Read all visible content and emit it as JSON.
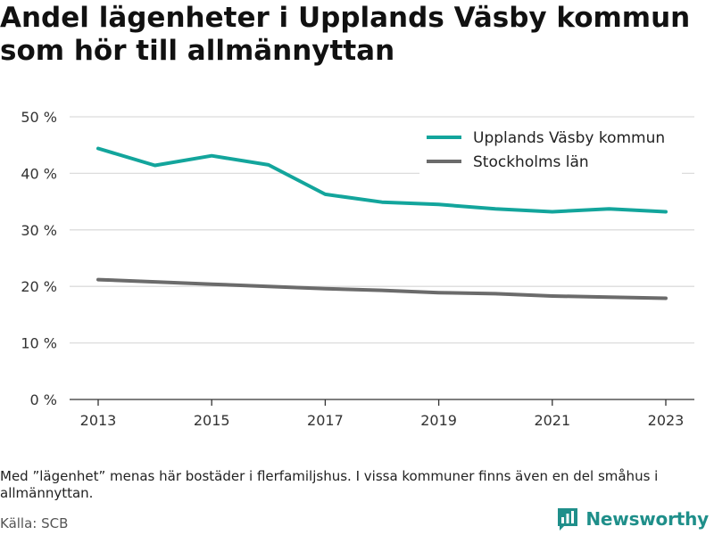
{
  "title": "Andel lägenheter i Upplands Väsby kommun som hör till allmännyttan",
  "note": "Med ”lägenhet” menas här bostäder i flerfamiljshus. I vissa kommuner finns även en del småhus i allmännyttan.",
  "source": "Källa: SCB",
  "brand": {
    "name": "Newsworthy",
    "icon": "newsworthy-logo-icon",
    "color": "#1f8f8a"
  },
  "chart_data": {
    "type": "line",
    "x": [
      2013,
      2014,
      2015,
      2016,
      2017,
      2018,
      2019,
      2020,
      2021,
      2022,
      2023
    ],
    "x_tick_labels": [
      "2013",
      "2015",
      "2017",
      "2019",
      "2021",
      "2023"
    ],
    "y_tick_labels": [
      "0 %",
      "10 %",
      "20 %",
      "30 %",
      "40 %",
      "50 %"
    ],
    "ylim": [
      0,
      50
    ],
    "grid": true,
    "legend_position": "top-right",
    "series": [
      {
        "name": "Upplands Väsby kommun",
        "color": "#13a59c",
        "values": [
          44.4,
          41.4,
          43.1,
          41.5,
          36.3,
          34.9,
          34.5,
          33.7,
          33.2,
          33.7,
          33.2
        ]
      },
      {
        "name": "Stockholms län",
        "color": "#6b6b6b",
        "values": [
          21.2,
          20.8,
          20.4,
          20.0,
          19.6,
          19.3,
          18.9,
          18.7,
          18.3,
          18.1,
          17.9
        ]
      }
    ]
  }
}
